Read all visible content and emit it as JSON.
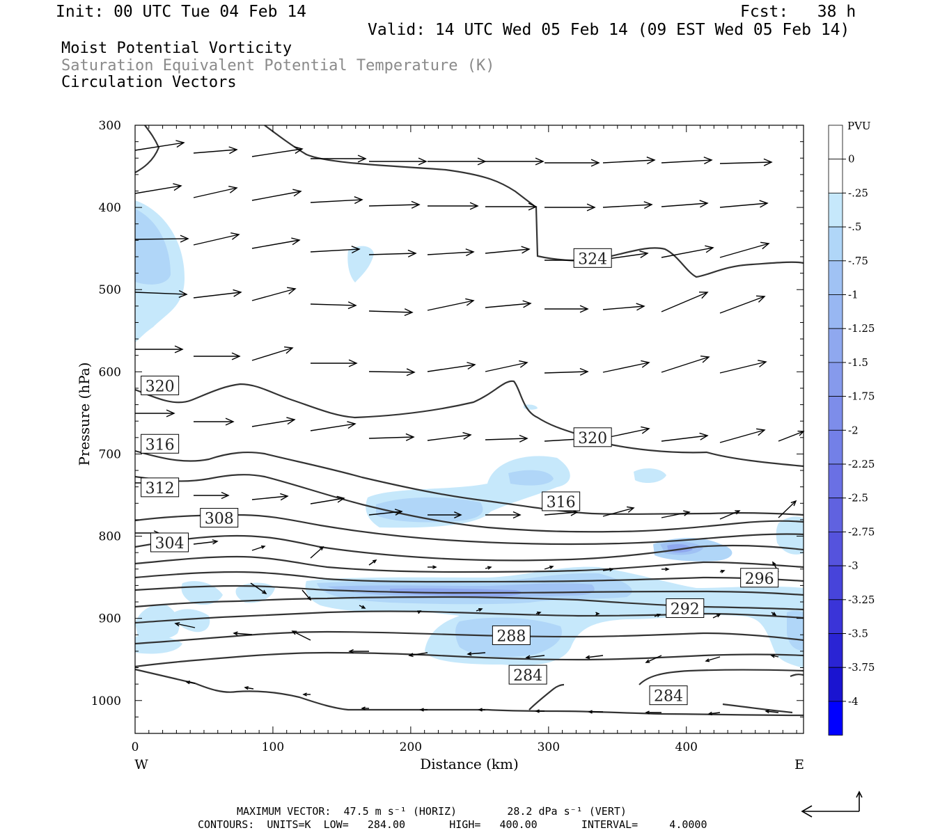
{
  "header": {
    "init": "Init: 00 UTC Tue 04 Feb 14",
    "fcst": "Fcst:   38 h",
    "valid": "Valid: 14 UTC Wed 05 Feb 14 (09 EST Wed 05 Feb 14)"
  },
  "fields": [
    {
      "label": "Moist Potential Vorticity"
    },
    {
      "label": "Saturation Equivalent Potential Temperature (K)"
    },
    {
      "label": "Circulation Vectors"
    }
  ],
  "colors": {
    "contour": "#333333",
    "pv_fill_levels": [
      "#c6e8fb",
      "#b0d6f8",
      "#a0c2f4",
      "#8fa8ef",
      "#7d8dea",
      "#6a70e4",
      "#5553dd",
      "#3a34d8",
      "#1a14d0",
      "#0000ff"
    ]
  },
  "chart_data": {
    "type": "contour",
    "title": "",
    "xlabel": "Distance (km)",
    "ylabel": "Pressure (hPa)",
    "x_ticks": [
      0,
      100,
      200,
      300,
      400
    ],
    "y_ticks": [
      300,
      400,
      500,
      600,
      700,
      800,
      900,
      1000
    ],
    "xlim": [
      0,
      485
    ],
    "ylim": [
      1040,
      300
    ],
    "x_end_labels": {
      "left": "W",
      "right": "E"
    },
    "contour_labels": [
      {
        "value": "324",
        "x": 332,
        "p": 462
      },
      {
        "value": "320",
        "x": 18,
        "p": 617
      },
      {
        "value": "320",
        "x": 332,
        "p": 680
      },
      {
        "value": "316",
        "x": 18,
        "p": 688
      },
      {
        "value": "316",
        "x": 309,
        "p": 758
      },
      {
        "value": "312",
        "x": 18,
        "p": 741
      },
      {
        "value": "308",
        "x": 61,
        "p": 778
      },
      {
        "value": "304",
        "x": 25,
        "p": 808
      },
      {
        "value": "296",
        "x": 453,
        "p": 851
      },
      {
        "value": "292",
        "x": 399,
        "p": 888
      },
      {
        "value": "288",
        "x": 273,
        "p": 921
      },
      {
        "value": "284",
        "x": 285,
        "p": 969
      },
      {
        "value": "284",
        "x": 387,
        "p": 994
      }
    ],
    "colorbar": {
      "unit": "PVU",
      "tick_labels": [
        "0",
        "-.25",
        "-.5",
        "-.75",
        "-1",
        "-1.25",
        "-1.5",
        "-1.75",
        "-2",
        "-2.25",
        "-2.5",
        "-2.75",
        "-3",
        "-3.25",
        "-3.5",
        "-3.75",
        "-4"
      ]
    }
  },
  "footer": {
    "max_vector": "MAXIMUM VECTOR:  47.5 m s⁻¹ (HORIZ)        28.2 dPa s⁻¹ (VERT)",
    "contours": "CONTOURS:  UNITS=K  LOW=   284.00       HIGH=   400.00       INTERVAL=     4.0000"
  }
}
